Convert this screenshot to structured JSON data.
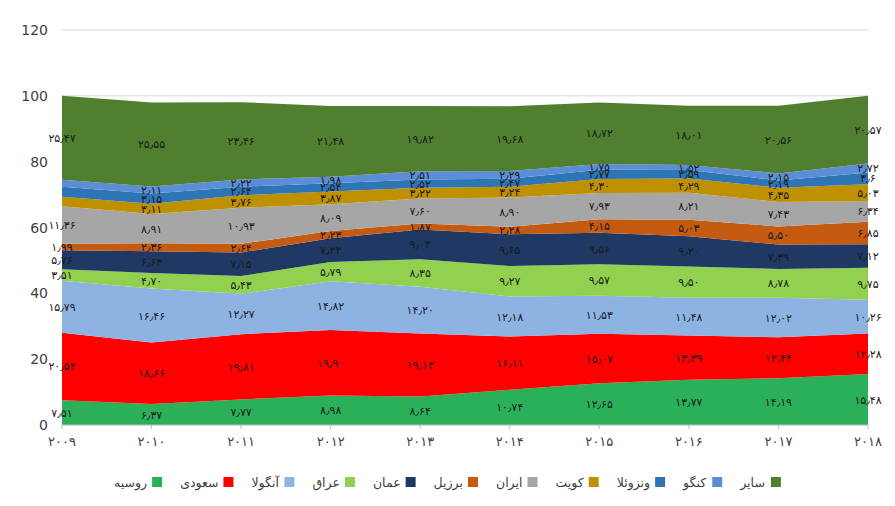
{
  "chart_data": {
    "type": "area",
    "stacked": true,
    "data_labels": true,
    "grid": true,
    "legend": "bottom",
    "categories": [
      "۲۰۰۹",
      "۲۰۱۰",
      "۲۰۱۱",
      "۲۰۱۲",
      "۲۰۱۳",
      "۲۰۱۴",
      "۲۰۱۵",
      "۲۰۱۶",
      "۲۰۱۷",
      "۲۰۱۸"
    ],
    "ylim": [
      0,
      120
    ],
    "yticks": [
      0,
      20,
      40,
      60,
      80,
      100,
      120
    ],
    "series": [
      {
        "name": "روسیه",
        "color": "#2bb05a",
        "values": [
          7.51,
          6.37,
          7.77,
          8.98,
          8.64,
          10.74,
          12.65,
          13.77,
          14.19,
          15.48
        ],
        "value_labels": [
          "۷٫۵۱",
          "۶٫۳۷",
          "۷٫۷۷",
          "۸٫۹۸",
          "۸٫۶۴",
          "۱۰٫۷۴",
          "۱۲٫۶۵",
          "۱۳٫۷۷",
          "۱۴٫۱۹",
          "۱۵٫۴۸"
        ]
      },
      {
        "name": "سعودی",
        "color": "#ff0000",
        "values": [
          20.54,
          18.66,
          19.81,
          19.9,
          19.13,
          16.11,
          15.07,
          13.39,
          12.44,
          12.28
        ],
        "value_labels": [
          "۲۰٫۵۴",
          "۱۸٫۶۶",
          "۱۹٫۸۱",
          "۱۹٫۹۰",
          "۱۹٫۱۳",
          "۱۶٫۱۱",
          "۱۵٫۰۷",
          "۱۳٫۳۹",
          "۱۲٫۴۴",
          "۱۲٫۲۸"
        ]
      },
      {
        "name": "آنگولا",
        "color": "#8db3e2",
        "values": [
          15.79,
          16.46,
          12.27,
          14.82,
          14.2,
          12.18,
          11.53,
          11.48,
          12.02,
          10.26
        ],
        "value_labels": [
          "۱۵٫۷۹",
          "۱۶٫۴۶",
          "۱۲٫۲۷",
          "۱۴٫۸۲",
          "۱۴٫۲۰",
          "۱۲٫۱۸",
          "۱۱٫۵۳",
          "۱۱٫۴۸",
          "۱۲٫۰۲",
          "۱۰٫۲۶"
        ]
      },
      {
        "name": "عراق",
        "color": "#92d050",
        "values": [
          3.51,
          4.7,
          5.43,
          5.79,
          8.35,
          9.27,
          9.57,
          9.5,
          8.78,
          9.75
        ],
        "value_labels": [
          "۳٫۵۱",
          "۴٫۷۰",
          "۵٫۴۳",
          "۵٫۷۹",
          "۸٫۳۵",
          "۹٫۲۷",
          "۹٫۵۷",
          "۹٫۵۰",
          "۸٫۷۸",
          "۹٫۷۵"
        ]
      },
      {
        "name": "عمان",
        "color": "#1f3864",
        "values": [
          5.76,
          6.63,
          7.15,
          7.22,
          9.04,
          9.65,
          9.56,
          9.2,
          7.39,
          7.12
        ],
        "value_labels": [
          "۵٫۷۶",
          "۶٫۶۳",
          "۷٫۱۵",
          "۷٫۲۲",
          "۹٫۰۴",
          "۹٫۶۵",
          "۹٫۵۶",
          "۹٫۲۰",
          "۷٫۳۹",
          "۷٫۱۲"
        ]
      },
      {
        "name": "برزیل",
        "color": "#c55a11",
        "values": [
          1.99,
          2.36,
          2.64,
          2.23,
          1.87,
          2.28,
          4.15,
          5.03,
          5.5,
          6.85
        ],
        "value_labels": [
          "۱٫۹۹",
          "۲٫۳۶",
          "۲٫۶۴",
          "۲٫۲۳",
          "۱٫۸۷",
          "۲٫۲۸",
          "۴٫۱۵",
          "۵٫۰۳",
          "۵٫۵۰",
          "۶٫۸۵"
        ]
      },
      {
        "name": "ایران",
        "color": "#a6a6a6",
        "values": [
          11.36,
          8.91,
          10.93,
          8.09,
          7.6,
          8.9,
          7.93,
          8.21,
          7.43,
          6.34
        ],
        "value_labels": [
          "۱۱٫۳۶",
          "۸٫۹۱",
          "۱۰٫۹۳",
          "۸٫۰۹",
          "۷٫۶۰",
          "۸٫۹۰",
          "۷٫۹۳",
          "۸٫۲۱",
          "۷٫۴۳",
          "۶٫۳۴"
        ]
      },
      {
        "name": "کویت",
        "color": "#bf9000",
        "values": [
          2.9,
          3.11,
          3.76,
          3.87,
          3.22,
          3.24,
          4.3,
          4.29,
          4.35,
          5.03
        ],
        "value_labels": [
          null,
          "۳٫۱۱",
          "۳٫۷۶",
          "۳٫۸۷",
          "۳٫۲۲",
          "۳٫۲۴",
          "۴٫۳۰",
          "۴٫۲۹",
          "۴٫۳۵",
          "۵٫۰۳"
        ]
      },
      {
        "name": "ونزوئلا",
        "color": "#2e75b6",
        "values": [
          3.0,
          3.15,
          2.64,
          2.54,
          2.52,
          2.47,
          2.77,
          2.59,
          2.19,
          3.6
        ],
        "value_labels": [
          null,
          "۳٫۱۵",
          "۲٫۶۴",
          "۲٫۵۴",
          "۲٫۵۲",
          "۲٫۴۷",
          "۲٫۷۷",
          "۲٫۵۹",
          "۲٫۱۹",
          "۳٫۶"
        ]
      },
      {
        "name": "کنگو",
        "color": "#5b8ed6",
        "values": [
          2.17,
          2.11,
          2.22,
          1.98,
          2.51,
          2.29,
          1.75,
          1.52,
          2.15,
          2.72
        ],
        "value_labels": [
          null,
          "۲٫۱۱",
          "۲٫۲۲",
          "۱٫۹۸",
          "۲٫۵۱",
          "۲٫۲۹",
          "۱٫۷۵",
          "۱٫۵۲",
          "۲٫۱۵",
          "۲٫۷۲"
        ]
      },
      {
        "name": "سایر",
        "color": "#4f7f2f",
        "values": [
          25.47,
          25.55,
          23.46,
          21.48,
          19.82,
          19.68,
          18.72,
          18.01,
          20.56,
          20.57
        ],
        "value_labels": [
          "۲۵٫۴۷",
          "۲۵٫۵۵",
          "۲۳٫۴۶",
          "۲۱٫۴۸",
          "۱۹٫۸۲",
          "۱۹٫۶۸",
          "۱۸٫۷۲",
          "۱۸٫۰۱",
          "۲۰٫۵۶",
          "۲۰٫۵۷"
        ]
      }
    ]
  }
}
